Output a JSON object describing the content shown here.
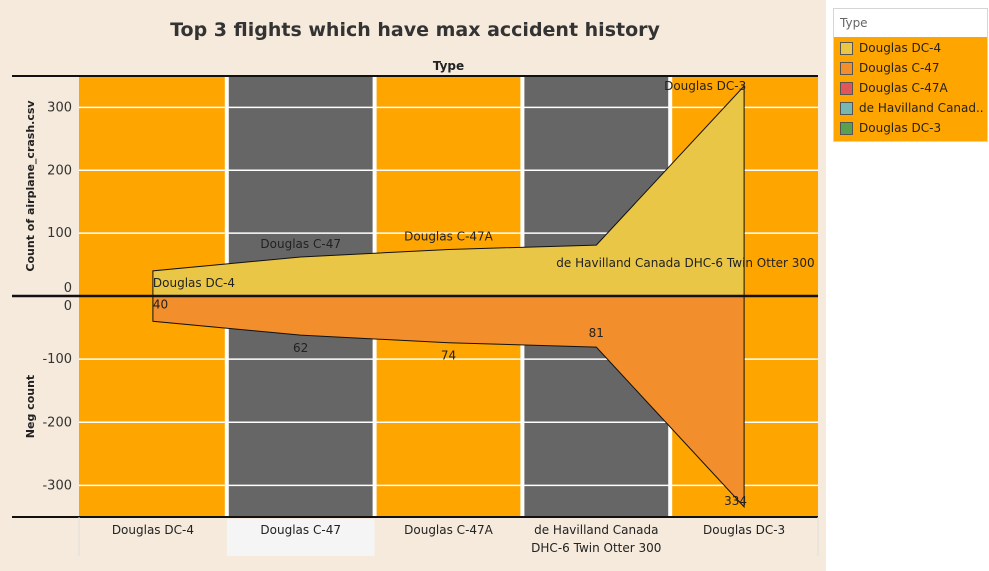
{
  "title": "Top 3 flights which have max accident history",
  "column_header": "Type",
  "legend": {
    "title": "Type",
    "items": [
      {
        "label": "Douglas DC-4",
        "color": "#e9c646"
      },
      {
        "label": "Douglas C-47",
        "color": "#f28e2b"
      },
      {
        "label": "Douglas C-47A",
        "color": "#e15759"
      },
      {
        "label": "de Havilland Canad..",
        "color": "#76b7b2"
      },
      {
        "label": "Douglas DC-3",
        "color": "#59a14f"
      }
    ]
  },
  "colors": {
    "orange_band": "#ffa500",
    "gray_band": "#666666",
    "upper_area": "#e9c646",
    "lower_area": "#f28e2b",
    "background": "#f5eadb"
  },
  "chart_data": {
    "type": "area",
    "categories": [
      "Douglas DC-4",
      "Douglas C-47",
      "Douglas C-47A",
      "de Havilland Canada DHC-6 Twin Otter 300",
      "Douglas DC-3"
    ],
    "category_labels": [
      [
        "Douglas DC-4"
      ],
      [
        "Douglas C-47"
      ],
      [
        "Douglas C-47A"
      ],
      [
        "de Havilland Canada",
        "DHC-6 Twin Otter 300"
      ],
      [
        "Douglas DC-3"
      ]
    ],
    "values": [
      40,
      62,
      74,
      81,
      334
    ],
    "top_labels": [
      "Douglas DC-4",
      "Douglas C-47",
      "Douglas C-47A",
      "de Havilland Canada DHC-6 Twin Otter 300",
      "Douglas DC-3"
    ],
    "bottom_labels": [
      "40",
      "62",
      "74",
      "81",
      "334"
    ],
    "upper_panel": {
      "ylabel": "Count of airplane_crash.csv",
      "ylim": [
        0,
        350
      ],
      "ticks": [
        0,
        100,
        200,
        300
      ]
    },
    "lower_panel": {
      "ylabel": "Neg count",
      "ylim": [
        -350,
        0
      ],
      "ticks": [
        0,
        -100,
        -200,
        -300
      ]
    },
    "band_colors": [
      "orange",
      "gray",
      "orange",
      "gray",
      "orange"
    ],
    "highlighted_category_index": 1,
    "grid": true
  }
}
